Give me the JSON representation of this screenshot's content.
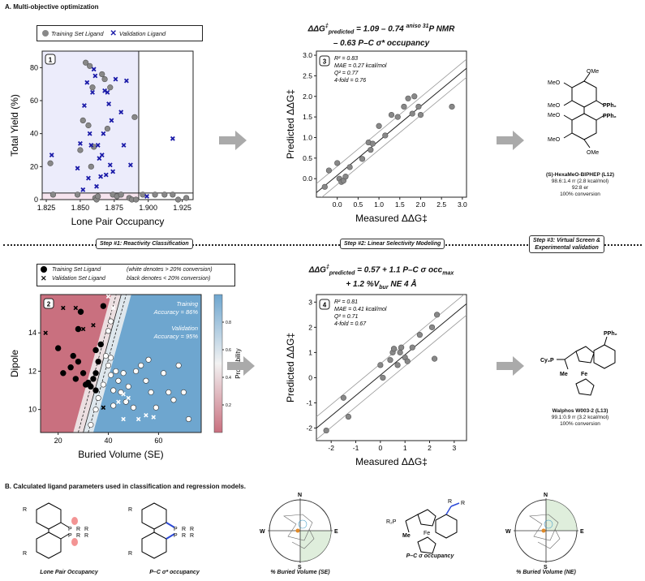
{
  "section_a_title": "A. Multi-objective optimization",
  "section_b_title": "B. Calculated ligand parameters used in classification and regression models.",
  "steps": [
    {
      "label": "Step #1: Reactivity Classification"
    },
    {
      "label": "Step #2: Linear Selectivity Modeling"
    },
    {
      "label": "Step #3: Virtual Screen &",
      "label2": "Experimental validation"
    }
  ],
  "colors": {
    "train_gray": "#888888",
    "valid_blue": "#1a1aa8",
    "shade_blue": "#ececfb",
    "shade_pink": "#f6e4ee",
    "prob_red": "#c9707f",
    "prob_blue": "#6ea6cf"
  },
  "panel1": {
    "badge": "1",
    "legend": [
      "Training Set Ligand",
      "Validation Ligand"
    ],
    "xlabel": "Lone Pair Occupancy",
    "ylabel": "Total Yield (%)",
    "xticks": [
      "1.825",
      "1.850",
      "1.875",
      "1.900",
      "1.925"
    ],
    "yticks": [
      "0",
      "20",
      "40",
      "60",
      "80"
    ]
  },
  "chart_data": [
    {
      "type": "scatter",
      "title": "Panel 1",
      "xlabel": "Lone Pair Occupancy",
      "ylabel": "Total Yield (%)",
      "xlim": [
        1.822,
        1.933
      ],
      "ylim": [
        0,
        90
      ],
      "threshold_x": 1.893,
      "threshold_y": 4,
      "series": [
        {
          "name": "Training Set Ligand",
          "marker": "circle",
          "points": [
            [
              1.828,
              22
            ],
            [
              1.83,
              3
            ],
            [
              1.848,
              3
            ],
            [
              1.85,
              30
            ],
            [
              1.852,
              48
            ],
            [
              1.854,
              83
            ],
            [
              1.856,
              45
            ],
            [
              1.857,
              81
            ],
            [
              1.858,
              20
            ],
            [
              1.859,
              68
            ],
            [
              1.86,
              32
            ],
            [
              1.861,
              1
            ],
            [
              1.862,
              0
            ],
            [
              1.863,
              2
            ],
            [
              1.866,
              76
            ],
            [
              1.868,
              73
            ],
            [
              1.87,
              43
            ],
            [
              1.872,
              68
            ],
            [
              1.874,
              3
            ],
            [
              1.877,
              2
            ],
            [
              1.88,
              3
            ],
            [
              1.886,
              1
            ],
            [
              1.888,
              0
            ],
            [
              1.89,
              50
            ],
            [
              1.891,
              0
            ],
            [
              1.896,
              3
            ],
            [
              1.905,
              3
            ],
            [
              1.912,
              3
            ],
            [
              1.918,
              3
            ],
            [
              1.922,
              0
            ],
            [
              1.928,
              1
            ]
          ]
        },
        {
          "name": "Validation Ligand",
          "marker": "x",
          "points": [
            [
              1.829,
              27
            ],
            [
              1.848,
              19
            ],
            [
              1.85,
              34
            ],
            [
              1.852,
              6
            ],
            [
              1.853,
              57
            ],
            [
              1.855,
              71
            ],
            [
              1.856,
              13
            ],
            [
              1.857,
              40
            ],
            [
              1.858,
              33
            ],
            [
              1.859,
              65
            ],
            [
              1.86,
              79
            ],
            [
              1.861,
              75
            ],
            [
              1.862,
              8
            ],
            [
              1.863,
              33
            ],
            [
              1.864,
              25
            ],
            [
              1.865,
              14
            ],
            [
              1.866,
              27
            ],
            [
              1.867,
              40
            ],
            [
              1.868,
              66
            ],
            [
              1.869,
              15
            ],
            [
              1.87,
              65
            ],
            [
              1.871,
              58
            ],
            [
              1.872,
              21
            ],
            [
              1.873,
              48
            ],
            [
              1.874,
              17
            ],
            [
              1.876,
              73
            ],
            [
              1.88,
              53
            ],
            [
              1.882,
              33
            ],
            [
              1.884,
              72
            ],
            [
              1.887,
              21
            ],
            [
              1.899,
              2
            ],
            [
              1.918,
              37
            ]
          ]
        }
      ]
    },
    {
      "type": "scatter",
      "title": "Panel 3",
      "equation": [
        "ΔΔG‡predicted = 1.09 – 0.74 aniso 31P NMR",
        "– 0.63 P–C σ* occupancy"
      ],
      "stats": [
        "R² = 0.83",
        "MAE = 0.27 kcal/mol",
        "Q² = 0.77",
        "4-fold = 0.76"
      ],
      "xlabel": "Measured ΔΔG‡",
      "ylabel": "Predicted ΔΔG‡",
      "xlim": [
        -0.5,
        3.1
      ],
      "ylim": [
        -0.45,
        3.1
      ],
      "xticks": [
        0.0,
        0.5,
        1.0,
        1.5,
        2.0,
        2.5,
        3.0
      ],
      "yticks": [
        0.0,
        0.5,
        1.0,
        1.5,
        2.0,
        2.5,
        3.0
      ],
      "fit": {
        "slope": 0.84,
        "intercept": 0.08,
        "band": 0.22
      },
      "points": [
        [
          -0.3,
          -0.2
        ],
        [
          -0.2,
          0.2
        ],
        [
          0.0,
          0.38
        ],
        [
          0.05,
          0.0
        ],
        [
          0.1,
          -0.08
        ],
        [
          0.15,
          -0.05
        ],
        [
          0.2,
          0.05
        ],
        [
          0.3,
          0.28
        ],
        [
          0.6,
          0.48
        ],
        [
          0.75,
          0.88
        ],
        [
          0.8,
          0.7
        ],
        [
          0.85,
          0.85
        ],
        [
          1.0,
          1.28
        ],
        [
          1.15,
          1.05
        ],
        [
          1.3,
          1.55
        ],
        [
          1.45,
          1.5
        ],
        [
          1.6,
          1.75
        ],
        [
          1.7,
          1.95
        ],
        [
          1.8,
          1.58
        ],
        [
          1.85,
          2.0
        ],
        [
          1.95,
          1.75
        ],
        [
          2.0,
          1.55
        ],
        [
          2.75,
          1.75
        ]
      ]
    },
    {
      "type": "heatmap",
      "title": "Panel 2",
      "xlabel": "Buried Volume (SE)",
      "ylabel": "Dipole",
      "xticks": [
        "20",
        "40",
        "60"
      ],
      "yticks": [
        "10",
        "12",
        "14"
      ],
      "xlim": [
        13,
        77
      ],
      "ylim": [
        8.8,
        16.0
      ],
      "colorbar": {
        "label": "Probability",
        "ticks": [
          "0.2",
          "0.4",
          "0.6",
          "0.8"
        ]
      },
      "annotations": [
        "Training Accuracy = 86%",
        "Validation Accuracy = 95%"
      ],
      "series": [
        {
          "name": "Training Set Ligand (black)",
          "marker": "circle",
          "points": [
            [
              20,
              13.2
            ],
            [
              22,
              11.9
            ],
            [
              25,
              12.2
            ],
            [
              26,
              12.8
            ],
            [
              27,
              11.6
            ],
            [
              28,
              12.5
            ],
            [
              28,
              14.2
            ],
            [
              29,
              15.1
            ],
            [
              30,
              11.9
            ],
            [
              31,
              11.3
            ],
            [
              32,
              11.4
            ],
            [
              33,
              11.2
            ],
            [
              34,
              11.6
            ],
            [
              35,
              11.9
            ],
            [
              36,
              12.5
            ],
            [
              35,
              13.1
            ],
            [
              37,
              13.4
            ],
            [
              38,
              15.4
            ],
            [
              35,
              11.0
            ]
          ]
        },
        {
          "name": "Training Set Ligand (white)",
          "marker": "circle-open",
          "points": [
            [
              36,
              10.6
            ],
            [
              38,
              11.3
            ],
            [
              39,
              12.8
            ],
            [
              40,
              12.3
            ],
            [
              41,
              11.8
            ],
            [
              41,
              12.7
            ],
            [
              42,
              11.0
            ],
            [
              42,
              10.2
            ],
            [
              43,
              12.0
            ],
            [
              44,
              11.5
            ],
            [
              45,
              10.9
            ],
            [
              46,
              11.9
            ],
            [
              47,
              10.4
            ],
            [
              48,
              11.2
            ],
            [
              50,
              10.1
            ],
            [
              51,
              12.0
            ],
            [
              53,
              12.3
            ],
            [
              55,
              11.5
            ],
            [
              56,
              12.6
            ],
            [
              57,
              10.9
            ],
            [
              59,
              10.1
            ],
            [
              62,
              11.9
            ],
            [
              64,
              10.9
            ],
            [
              66,
              10.5
            ],
            [
              68,
              12.3
            ],
            [
              70,
              10.9
            ],
            [
              72,
              9.5
            ],
            [
              40,
              14.1
            ],
            [
              41,
              14.6
            ],
            [
              35,
              10.0
            ],
            [
              33,
              9.2
            ]
          ]
        },
        {
          "name": "Validation Set Ligand",
          "marker": "x",
          "points": [
            [
              15,
              14.0
            ],
            [
              22,
              15.3
            ],
            [
              27,
              15.3
            ],
            [
              30,
              14.2
            ],
            [
              34,
              14.4
            ],
            [
              40,
              15.9
            ],
            [
              42,
              15.3
            ],
            [
              44,
              10.4
            ],
            [
              46,
              9.5
            ],
            [
              48,
              10.6
            ],
            [
              52,
              9.5
            ],
            [
              55,
              9.7
            ],
            [
              58,
              9.6
            ],
            [
              46,
              10.8
            ],
            [
              38,
              10.1
            ]
          ]
        }
      ]
    },
    {
      "type": "scatter",
      "title": "Panel 4",
      "equation": [
        "ΔΔG‡predicted = 0.57 + 1.1 P–C σ occmax",
        "+ 1.2 %Vbur NE 4 Å"
      ],
      "stats": [
        "R² = 0.81",
        "MAE = 0.41 kcal/mol",
        "Q² = 0.71",
        "4-fold = 0.67"
      ],
      "xlabel": "Measured ΔΔG‡",
      "ylabel": "Predicted ΔΔG‡",
      "xlim": [
        -2.6,
        3.5
      ],
      "ylim": [
        -2.5,
        3.3
      ],
      "xticks": [
        -2,
        -1,
        0,
        1,
        2,
        3
      ],
      "yticks": [
        -2,
        -1,
        0,
        1,
        2,
        3
      ],
      "fit": {
        "slope": 0.81,
        "intercept": 0.1,
        "band": 0.45
      },
      "points": [
        [
          -2.2,
          -2.1
        ],
        [
          -1.5,
          -0.8
        ],
        [
          -1.3,
          -1.55
        ],
        [
          0.0,
          0.5
        ],
        [
          0.1,
          0.0
        ],
        [
          0.4,
          0.7
        ],
        [
          0.5,
          1.0
        ],
        [
          0.55,
          1.15
        ],
        [
          0.7,
          0.5
        ],
        [
          0.8,
          1.0
        ],
        [
          0.85,
          1.2
        ],
        [
          1.0,
          0.8
        ],
        [
          1.1,
          0.65
        ],
        [
          1.3,
          1.2
        ],
        [
          1.6,
          1.7
        ],
        [
          2.1,
          2.0
        ],
        [
          2.2,
          0.75
        ],
        [
          2.3,
          2.5
        ]
      ]
    }
  ],
  "panel2": {
    "badge": "2",
    "legend": [
      "Training Set Ligand",
      "Validation Set Ligand"
    ],
    "legend_note": [
      "(white denotes > 20% conversion)",
      "black denotes < 20% conversion)"
    ],
    "train_acc_label": "Training",
    "train_acc_value": "Accuracy = 86%",
    "valid_acc_label": "Validation",
    "valid_acc_value": "Accuracy = 95%"
  },
  "panel3": {
    "badge": "3"
  },
  "panel4": {
    "badge": "4"
  },
  "equation3": {
    "lhs": "ΔΔG",
    "sup1": "‡",
    "sub1": "predicted",
    "rhs": " = 1.09 – 0.74 ",
    "sup2": "aniso 31",
    "term2": "P NMR",
    "line2": "– 0.63 P–C σ* occupancy"
  },
  "equation4": {
    "lhs": "ΔΔG",
    "sup1": "‡",
    "sub1": "predicted",
    "rhs": " = 0.57 + 1.1 ",
    "term": "P–C σ occ",
    "sub2": "max",
    "line2a": "+ 1.2 %V",
    "sub3": "bur",
    "line2b": " NE 4 Å"
  },
  "ligand12": {
    "name": "(S)-HexaMeO-BIPHEP (L12)",
    "line1": "98.6:1.4 rr (2.8 kcal/mol)",
    "line2": "92:8 er",
    "line3": "100% conversion",
    "atoms": [
      "OMe",
      "MeO",
      "MeO",
      "PPh₂",
      "PPh₂",
      "MeO",
      "MeO",
      "OMe"
    ]
  },
  "ligand13": {
    "name": "Walphos W003-2 (L13)",
    "line1": "99.1:0.9 rr (3.2 kcal/mol)",
    "line2": "100% conversion",
    "atoms": [
      "PPh₂",
      "Cy₂P",
      "Fe",
      "Me"
    ]
  },
  "params": [
    {
      "label": "Lone Pair Occupancy",
      "atoms": [
        "R",
        "R",
        "P",
        "R",
        "R",
        "P",
        "R",
        "R"
      ]
    },
    {
      "label": "P–C σ* occupancy",
      "atoms": [
        "R",
        "R",
        "P",
        "R",
        "R",
        "P",
        "R",
        "R"
      ]
    },
    {
      "label": "% Buried Volume (SE)",
      "compass": [
        "N",
        "E",
        "S",
        "W"
      ]
    },
    {
      "label": "P–C σ occupancy",
      "atoms": [
        "R",
        "R",
        "R₂P",
        "Fe",
        "Me"
      ]
    },
    {
      "label": "% Buried Volume (NE)",
      "compass": [
        "N",
        "E",
        "S",
        "W"
      ]
    }
  ]
}
